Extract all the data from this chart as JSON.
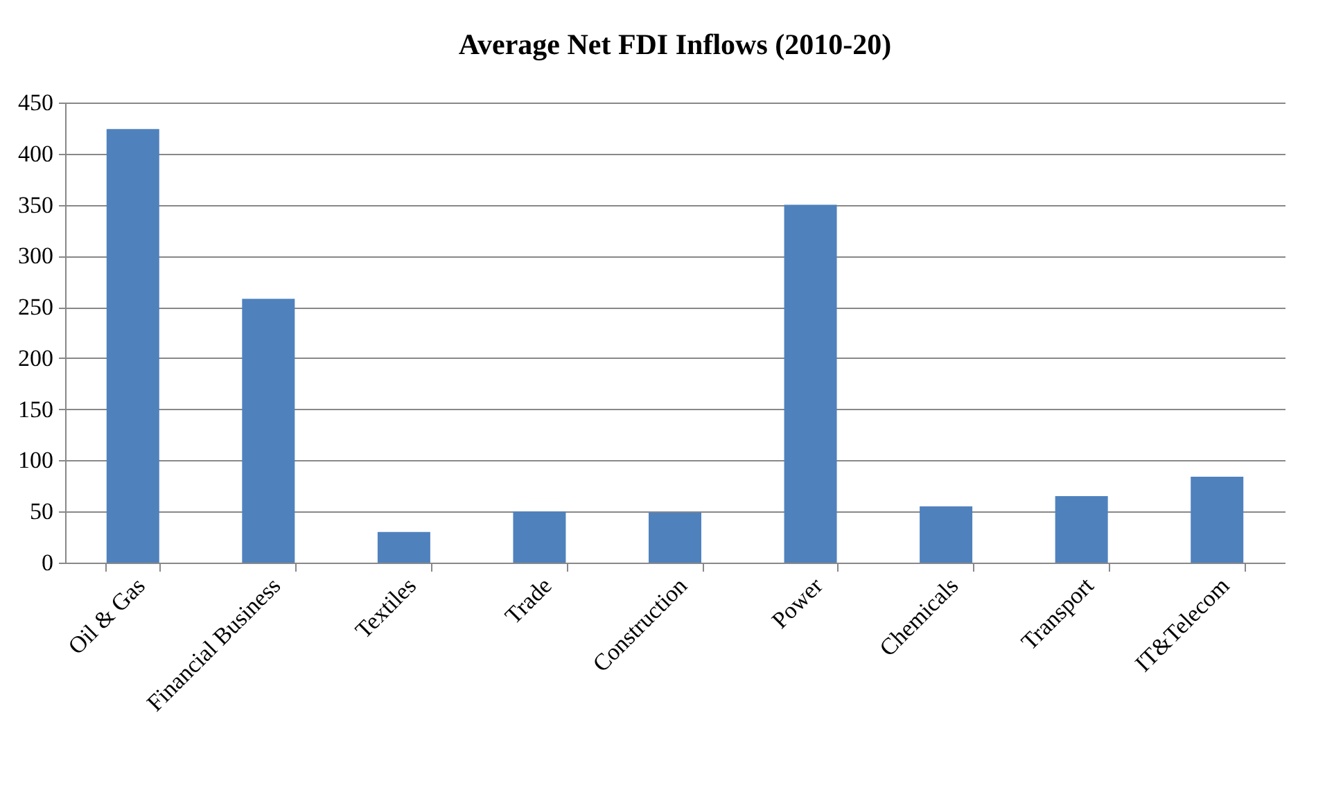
{
  "chart_data": {
    "type": "bar",
    "title": "Average Net FDI Inflows (2010-20)",
    "categories": [
      "Oil & Gas",
      "Financial Business",
      "Textiles",
      "Trade",
      "Construction",
      "Power",
      "Chemicals",
      "Transport",
      "IT&Telecom"
    ],
    "values": [
      424,
      258,
      30,
      50,
      49,
      350,
      55,
      65,
      84
    ],
    "color": "#4f81bd",
    "ylim": [
      0,
      450
    ],
    "yticks": [
      0,
      50,
      100,
      150,
      200,
      250,
      300,
      350,
      400,
      450
    ],
    "grid": "y"
  }
}
